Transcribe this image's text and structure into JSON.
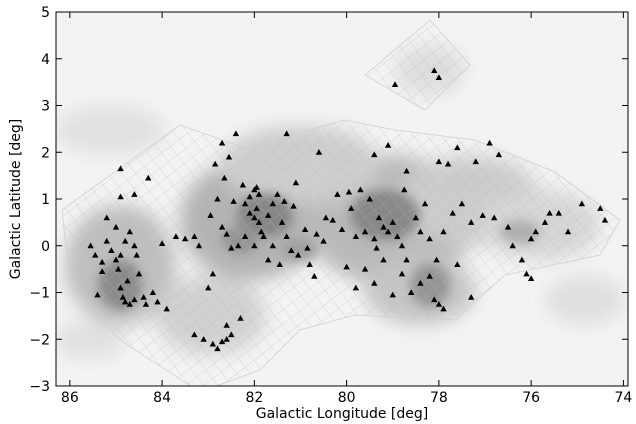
{
  "chart_data": {
    "type": "scatter",
    "title": "",
    "xlabel": "Galactic Longitude [deg]",
    "ylabel": "Galactic Latitude [deg]",
    "xlim": [
      86.3,
      73.9
    ],
    "ylim": [
      -3,
      5
    ],
    "x_reversed": true,
    "xticks": [
      86,
      84,
      82,
      80,
      78,
      76,
      74
    ],
    "yticks": [
      -3,
      -2,
      -1,
      0,
      1,
      2,
      3,
      4,
      5
    ],
    "marker": "triangle",
    "marker_color": "#000000",
    "background": "grayscale extinction map with survey tile grid",
    "grid": false,
    "series": [
      {
        "points": [
          [
            85.4,
            -1.05
          ],
          [
            85.3,
            -0.55
          ],
          [
            85.2,
            0.1
          ],
          [
            85.1,
            -0.1
          ],
          [
            85.0,
            -0.3
          ],
          [
            84.95,
            -0.5
          ],
          [
            84.9,
            -0.9
          ],
          [
            84.85,
            -1.1
          ],
          [
            84.8,
            -1.2
          ],
          [
            84.7,
            -1.25
          ],
          [
            84.6,
            -1.15
          ],
          [
            84.75,
            -0.75
          ],
          [
            84.9,
            -0.2
          ],
          [
            84.8,
            0.1
          ],
          [
            84.7,
            0.3
          ],
          [
            84.6,
            0.0
          ],
          [
            84.55,
            -0.2
          ],
          [
            84.9,
            1.05
          ],
          [
            84.6,
            1.1
          ],
          [
            84.3,
            1.45
          ],
          [
            84.9,
            1.65
          ],
          [
            85.2,
            0.6
          ],
          [
            85.0,
            0.4
          ],
          [
            84.5,
            -0.6
          ],
          [
            84.4,
            -1.1
          ],
          [
            84.2,
            -1.0
          ],
          [
            84.0,
            0.05
          ],
          [
            83.7,
            0.2
          ],
          [
            83.5,
            0.15
          ],
          [
            83.2,
            0.0
          ],
          [
            83.3,
            0.2
          ],
          [
            83.1,
            -2.0
          ],
          [
            82.9,
            -2.1
          ],
          [
            82.8,
            -2.2
          ],
          [
            82.7,
            -2.05
          ],
          [
            82.6,
            -2.0
          ],
          [
            82.5,
            -1.9
          ],
          [
            82.3,
            -1.55
          ],
          [
            82.6,
            -1.7
          ],
          [
            83.3,
            -1.9
          ],
          [
            82.8,
            1.0
          ],
          [
            82.7,
            2.2
          ],
          [
            82.55,
            1.9
          ],
          [
            82.4,
            2.4
          ],
          [
            82.2,
            0.9
          ],
          [
            82.1,
            0.7
          ],
          [
            82.0,
            0.6
          ],
          [
            81.95,
            0.8
          ],
          [
            81.9,
            0.5
          ],
          [
            81.85,
            0.3
          ],
          [
            81.8,
            0.2
          ],
          [
            82.0,
            0.0
          ],
          [
            82.2,
            0.2
          ],
          [
            82.35,
            0.0
          ],
          [
            82.5,
            -0.05
          ],
          [
            82.6,
            0.25
          ],
          [
            82.7,
            0.4
          ],
          [
            81.7,
            0.65
          ],
          [
            81.6,
            0.9
          ],
          [
            81.5,
            1.1
          ],
          [
            81.4,
            0.5
          ],
          [
            81.3,
            0.2
          ],
          [
            81.2,
            -0.1
          ],
          [
            81.05,
            -0.2
          ],
          [
            80.9,
            0.35
          ],
          [
            80.85,
            -0.05
          ],
          [
            80.8,
            -0.4
          ],
          [
            80.7,
            -0.65
          ],
          [
            81.1,
            1.35
          ],
          [
            81.3,
            2.4
          ],
          [
            82.0,
            1.2
          ],
          [
            81.9,
            1.1
          ],
          [
            82.1,
            1.05
          ],
          [
            81.6,
            0.0
          ],
          [
            80.45,
            0.6
          ],
          [
            80.3,
            0.55
          ],
          [
            79.9,
            0.8
          ],
          [
            79.7,
            1.2
          ],
          [
            79.5,
            1.0
          ],
          [
            79.3,
            0.6
          ],
          [
            79.2,
            0.4
          ],
          [
            79.1,
            0.3
          ],
          [
            79.0,
            0.5
          ],
          [
            78.9,
            0.2
          ],
          [
            78.8,
            0.0
          ],
          [
            78.7,
            -0.3
          ],
          [
            79.4,
            1.95
          ],
          [
            79.1,
            2.15
          ],
          [
            78.7,
            1.6
          ],
          [
            78.95,
            3.45
          ],
          [
            78.1,
            3.75
          ],
          [
            78.0,
            3.6
          ],
          [
            79.8,
            -0.9
          ],
          [
            79.6,
            -0.5
          ],
          [
            79.4,
            -0.8
          ],
          [
            79.2,
            -0.3
          ],
          [
            79.0,
            -1.05
          ],
          [
            78.8,
            -0.6
          ],
          [
            78.6,
            -1.0
          ],
          [
            78.4,
            -0.8
          ],
          [
            78.2,
            -0.65
          ],
          [
            78.1,
            -1.15
          ],
          [
            78.0,
            -1.25
          ],
          [
            77.9,
            -1.35
          ],
          [
            78.05,
            -0.3
          ],
          [
            78.2,
            0.15
          ],
          [
            78.4,
            0.3
          ],
          [
            78.0,
            1.8
          ],
          [
            77.8,
            1.75
          ],
          [
            77.6,
            2.1
          ],
          [
            77.2,
            1.8
          ],
          [
            77.3,
            0.5
          ],
          [
            77.5,
            0.9
          ],
          [
            77.7,
            0.7
          ],
          [
            77.9,
            0.3
          ],
          [
            77.6,
            -0.4
          ],
          [
            77.3,
            -1.1
          ],
          [
            76.9,
            2.2
          ],
          [
            76.7,
            1.95
          ],
          [
            76.8,
            0.6
          ],
          [
            76.5,
            0.4
          ],
          [
            76.4,
            0.0
          ],
          [
            76.2,
            -0.3
          ],
          [
            76.0,
            0.15
          ],
          [
            75.9,
            0.3
          ],
          [
            75.7,
            0.5
          ],
          [
            76.1,
            -0.6
          ],
          [
            76.0,
            -0.7
          ],
          [
            75.6,
            0.7
          ],
          [
            75.4,
            0.7
          ],
          [
            75.2,
            0.3
          ],
          [
            74.9,
            0.9
          ],
          [
            74.5,
            0.8
          ],
          [
            74.4,
            0.55
          ],
          [
            83.0,
            -0.9
          ],
          [
            82.9,
            -0.6
          ],
          [
            85.55,
            0.0
          ],
          [
            85.45,
            -0.2
          ],
          [
            85.3,
            -0.35
          ],
          [
            80.1,
            0.35
          ],
          [
            80.0,
            -0.45
          ],
          [
            79.8,
            0.2
          ],
          [
            79.6,
            0.3
          ],
          [
            79.4,
            0.15
          ],
          [
            79.35,
            -0.05
          ],
          [
            81.45,
            -0.4
          ],
          [
            81.7,
            -0.3
          ],
          [
            82.45,
            0.95
          ],
          [
            82.25,
            1.3
          ],
          [
            81.95,
            1.25
          ],
          [
            78.5,
            0.6
          ],
          [
            78.3,
            0.9
          ],
          [
            80.6,
            2.0
          ],
          [
            80.2,
            1.1
          ],
          [
            79.95,
            1.15
          ],
          [
            78.75,
            1.2
          ],
          [
            84.35,
            -1.25
          ],
          [
            84.1,
            -1.2
          ],
          [
            83.9,
            -1.35
          ],
          [
            77.05,
            0.65
          ],
          [
            80.5,
            0.1
          ],
          [
            80.65,
            0.25
          ],
          [
            81.15,
            0.85
          ],
          [
            81.35,
            0.95
          ],
          [
            82.95,
            0.65
          ],
          [
            82.65,
            1.45
          ],
          [
            82.85,
            1.75
          ]
        ]
      }
    ]
  }
}
